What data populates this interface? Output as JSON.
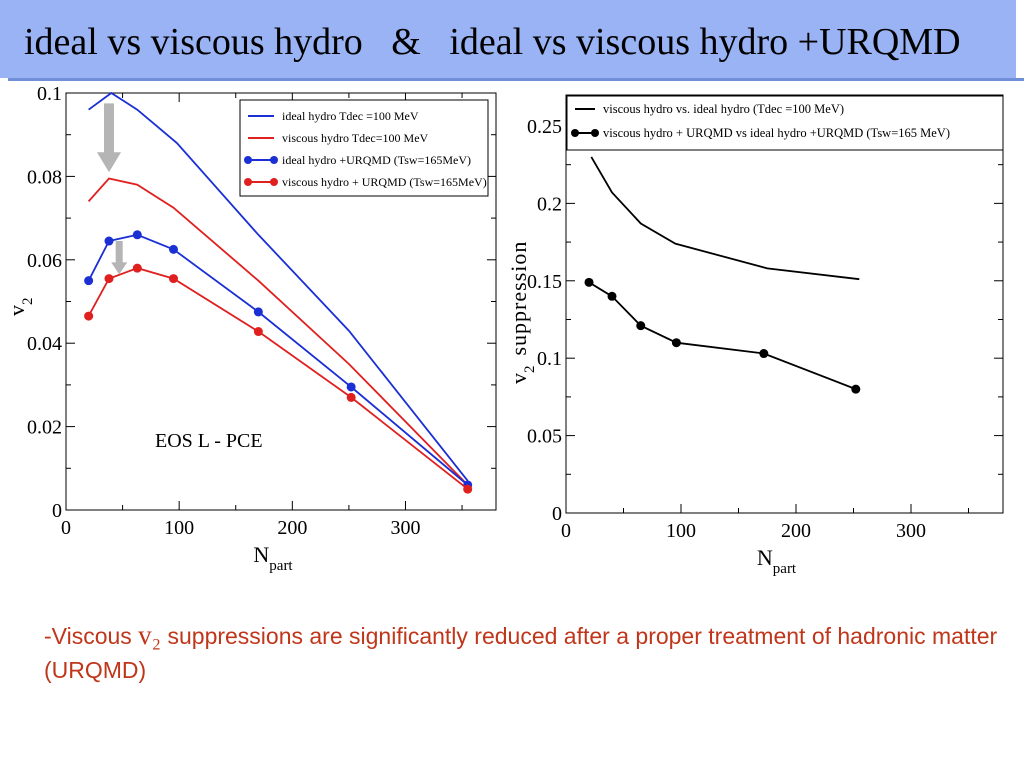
{
  "slide": {
    "title": "ideal vs viscous hydro   &   ideal vs viscous hydro +URQMD",
    "note_prefix": "-Viscous ",
    "note_symbol": "v₂",
    "note_suffix": " suppressions are significantly reduced after a proper treatment of hadronic matter  (URQMD)",
    "title_bar_color": "#99b3f5",
    "note_color": "#c0361a"
  },
  "chart_data": [
    {
      "type": "line",
      "xlabel_main": "N",
      "xlabel_sub": "part",
      "ylabel_main": "v",
      "ylabel_sub": "2",
      "xlim": [
        0,
        380
      ],
      "ylim": [
        0,
        0.1
      ],
      "xticks": [
        0,
        100,
        200,
        300
      ],
      "xtick_labels": [
        "0",
        "100",
        "200",
        "300"
      ],
      "yticks": [
        0,
        0.02,
        0.04,
        0.06,
        0.08,
        0.1
      ],
      "ytick_labels": [
        "0",
        "0.02",
        "0.04",
        "0.06",
        "0.08",
        "0.1"
      ],
      "annotation": "EOS L - PCE",
      "legend_position": "top-right",
      "series": [
        {
          "name": "ideal hydro Tdec =100 MeV",
          "color": "#1a2fd4",
          "markers": false,
          "x": [
            20,
            40,
            63,
            98,
            170,
            250,
            355
          ],
          "y": [
            0.096,
            0.1,
            0.096,
            0.088,
            0.066,
            0.043,
            0.007
          ]
        },
        {
          "name": "viscous hydro Tdec=100 MeV",
          "color": "#e01f1f",
          "markers": false,
          "x": [
            20,
            38,
            63,
            95,
            170,
            250,
            355
          ],
          "y": [
            0.074,
            0.0795,
            0.078,
            0.0725,
            0.055,
            0.035,
            0.006
          ]
        },
        {
          "name": "ideal hydro +URQMD (Tsw=165MeV)",
          "color": "#1a2fd4",
          "markers": true,
          "x": [
            20,
            38,
            63,
            95,
            170,
            252,
            355
          ],
          "y": [
            0.055,
            0.0645,
            0.066,
            0.0625,
            0.0475,
            0.0295,
            0.006
          ]
        },
        {
          "name": "viscous hydro + URQMD (Tsw=165MeV)",
          "color": "#e01f1f",
          "markers": true,
          "x": [
            20,
            38,
            63,
            95,
            170,
            252,
            355
          ],
          "y": [
            0.0465,
            0.0555,
            0.058,
            0.0555,
            0.0428,
            0.027,
            0.005
          ]
        }
      ],
      "arrows": [
        {
          "x": 38,
          "y_from": 0.0975,
          "y_to": 0.081
        },
        {
          "x": 47,
          "y_from": 0.0645,
          "y_to": 0.0565
        }
      ]
    },
    {
      "type": "line",
      "xlabel_main": "N",
      "xlabel_sub": "part",
      "ylabel_main": "v",
      "ylabel_sub": "2",
      "ylabel_suffix": "suppression",
      "xlim": [
        0,
        380
      ],
      "ylim": [
        0,
        0.27
      ],
      "xticks": [
        0,
        100,
        200,
        300
      ],
      "xtick_labels": [
        "0",
        "100",
        "200",
        "300"
      ],
      "yticks": [
        0,
        0.05,
        0.1,
        0.15,
        0.2,
        0.25
      ],
      "ytick_labels": [
        "0",
        "0.05",
        "0.1",
        "0.15",
        "0.2",
        "0.25"
      ],
      "legend_position": "top",
      "series": [
        {
          "name": "viscous hydro vs. ideal hydro (Tdec =100 MeV)",
          "color": "#000000",
          "markers": false,
          "x": [
            22,
            40,
            65,
            95,
            175,
            255
          ],
          "y": [
            0.23,
            0.207,
            0.187,
            0.174,
            0.158,
            0.151
          ]
        },
        {
          "name": "viscous hydro + URQMD vs ideal hydro +URQMD (Tsw=165 MeV)",
          "color": "#000000",
          "markers": true,
          "x": [
            20,
            40,
            65,
            96,
            172,
            252
          ],
          "y": [
            0.149,
            0.14,
            0.121,
            0.11,
            0.103,
            0.08
          ]
        }
      ]
    }
  ]
}
